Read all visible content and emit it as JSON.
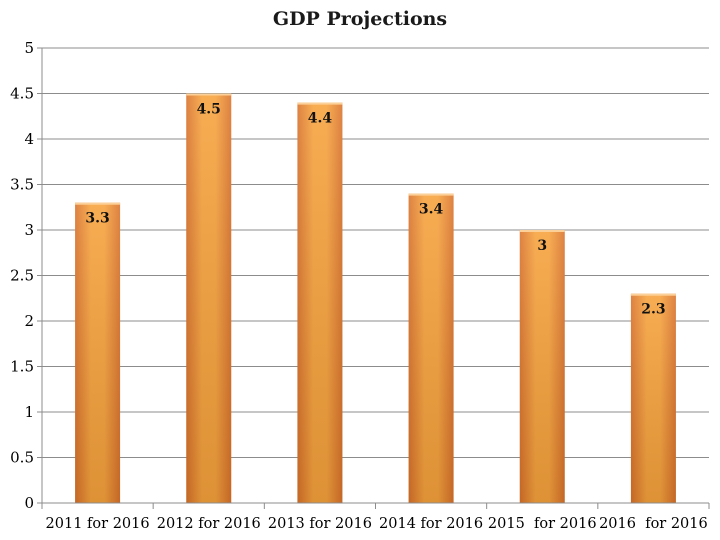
{
  "chart_data": {
    "type": "bar",
    "title": "GDP Projections",
    "xlabel": "",
    "ylabel": "",
    "categories": [
      "2011 for 2016",
      "2012 for 2016",
      "2013 for 2016",
      "2014 for 2016",
      "2015  for 2016",
      "2016  for 2016"
    ],
    "values": [
      3.3,
      4.5,
      4.4,
      3.4,
      3,
      2.3
    ],
    "data_labels": [
      "3.3",
      "4.5",
      "4.4",
      "3.4",
      "3",
      "2.3"
    ],
    "ylim": [
      0,
      5
    ],
    "yticks": [
      "0",
      "0.5",
      "1",
      "1.5",
      "2",
      "2.5",
      "3",
      "3.5",
      "4",
      "4.5",
      "5"
    ],
    "grid": true,
    "legend": "none",
    "bar_color": "#f29a33",
    "bar_color_light": "#fbb04e",
    "bar_color_dark": "#e0792a"
  }
}
